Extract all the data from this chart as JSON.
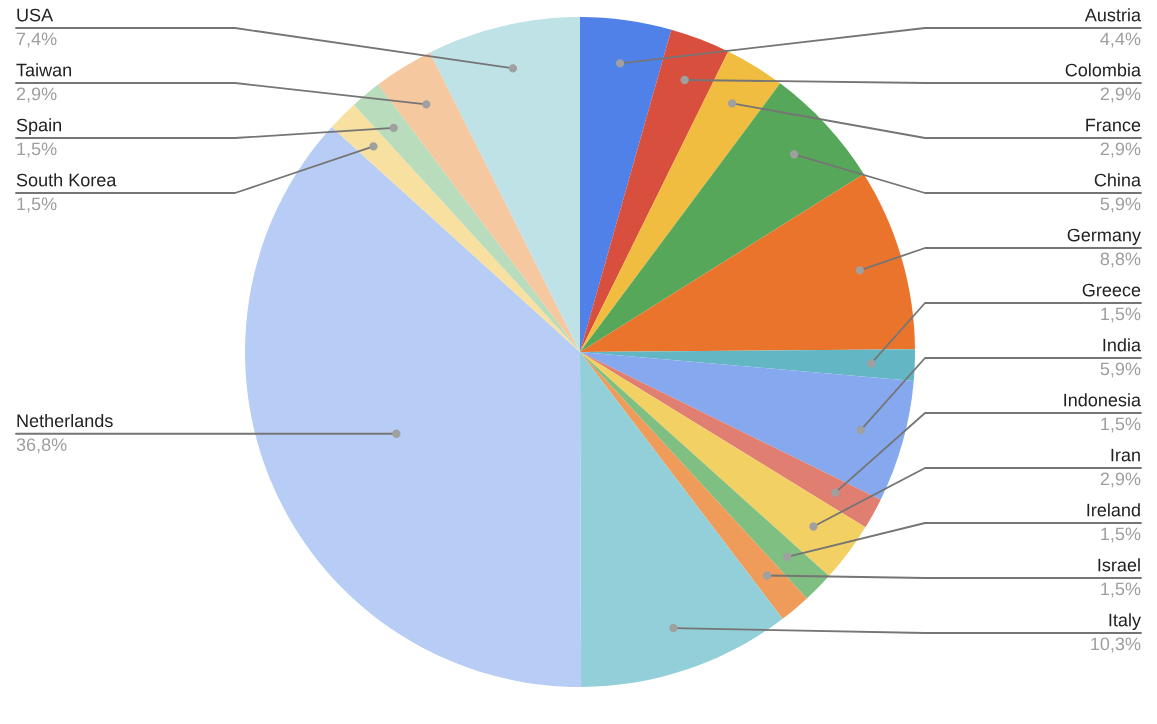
{
  "chart_data": {
    "type": "pie",
    "categories": [
      "Austria",
      "Colombia",
      "France",
      "China",
      "Germany",
      "Greece",
      "India",
      "Indonesia",
      "Iran",
      "Ireland",
      "Israel",
      "Italy",
      "Netherlands",
      "South Korea",
      "Spain",
      "Taiwan",
      "USA"
    ],
    "values": [
      4.4,
      2.9,
      2.9,
      5.9,
      8.8,
      1.5,
      5.9,
      1.5,
      2.9,
      1.5,
      1.5,
      10.3,
      36.8,
      1.5,
      1.5,
      2.9,
      7.4
    ],
    "value_labels": [
      "4,4%",
      "2,9%",
      "2,9%",
      "5,9%",
      "8,8%",
      "1,5%",
      "5,9%",
      "1,5%",
      "2,9%",
      "1,5%",
      "1,5%",
      "10,3%",
      "36,8%",
      "1,5%",
      "1,5%",
      "2,9%",
      "7,4%"
    ],
    "colors": [
      "#4f81e8",
      "#d94f3d",
      "#f1bd41",
      "#57a75a",
      "#ea742b",
      "#63b7c4",
      "#86a8ee",
      "#e07e72",
      "#f3d063",
      "#7fbf82",
      "#ef9b5a",
      "#93cfd9",
      "#b8cdf6",
      "#f7e0a0",
      "#b8dcbc",
      "#f5c8a0",
      "#bfe2e7"
    ],
    "legend": false
  }
}
